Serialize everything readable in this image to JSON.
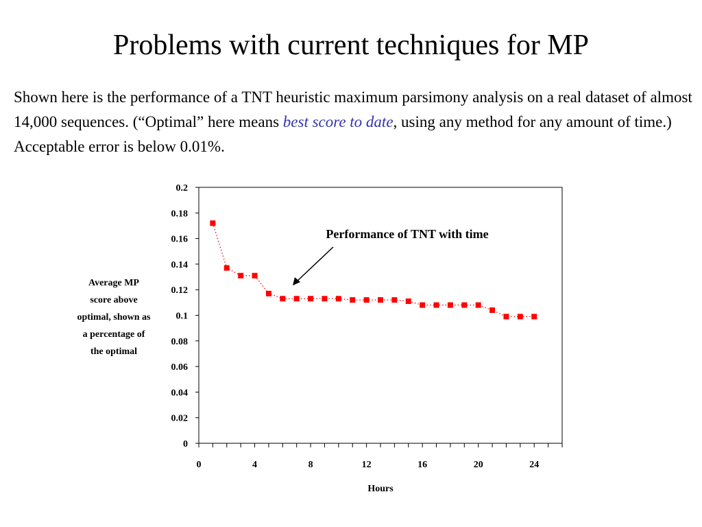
{
  "slide": {
    "title": "Problems with current techniques for MP",
    "body_part1": "Shown here is the performance of a TNT heuristic maximum parsimony analysis on a real dataset of almost 14,000 sequences. (“Optimal” here means ",
    "body_emphasis": "best score to date",
    "body_part2": ", using any method for any amount of time.)  Acceptable error is below 0.01%.",
    "emphasis_color": "#3333aa"
  },
  "chart_data": {
    "type": "line",
    "title": "",
    "annotation": "Performance of TNT with time",
    "xlabel": "Hours",
    "ylabel_lines": [
      "Average MP",
      "score above",
      "optimal, shown as",
      "a percentage of",
      "the optimal"
    ],
    "xlim": [
      0,
      26
    ],
    "ylim": [
      0,
      0.2
    ],
    "x_ticks": [
      0,
      4,
      8,
      12,
      16,
      20,
      24
    ],
    "x_tick_labels": [
      "0",
      "4",
      "8",
      "12",
      "16",
      "20",
      "24"
    ],
    "y_ticks": [
      0,
      0.02,
      0.04,
      0.06,
      0.08,
      0.1,
      0.12,
      0.14,
      0.16,
      0.18,
      0.2
    ],
    "y_tick_labels": [
      "0",
      "0.02",
      "0.04",
      "0.06",
      "0.08",
      "0.1",
      "0.12",
      "0.14",
      "0.16",
      "0.18",
      "0.2"
    ],
    "grid": false,
    "marker_color": "#ff0000",
    "series": [
      {
        "x": [
          1,
          2,
          3,
          4,
          5,
          6,
          7,
          8,
          9,
          10,
          11,
          12,
          13,
          14,
          15,
          16,
          17,
          18,
          19,
          20,
          21,
          22,
          23,
          24
        ],
        "values": [
          0.172,
          0.137,
          0.131,
          0.131,
          0.117,
          0.113,
          0.113,
          0.113,
          0.113,
          0.113,
          0.112,
          0.112,
          0.112,
          0.112,
          0.111,
          0.108,
          0.108,
          0.108,
          0.108,
          0.108,
          0.104,
          0.099,
          0.099,
          0.099
        ]
      }
    ]
  }
}
